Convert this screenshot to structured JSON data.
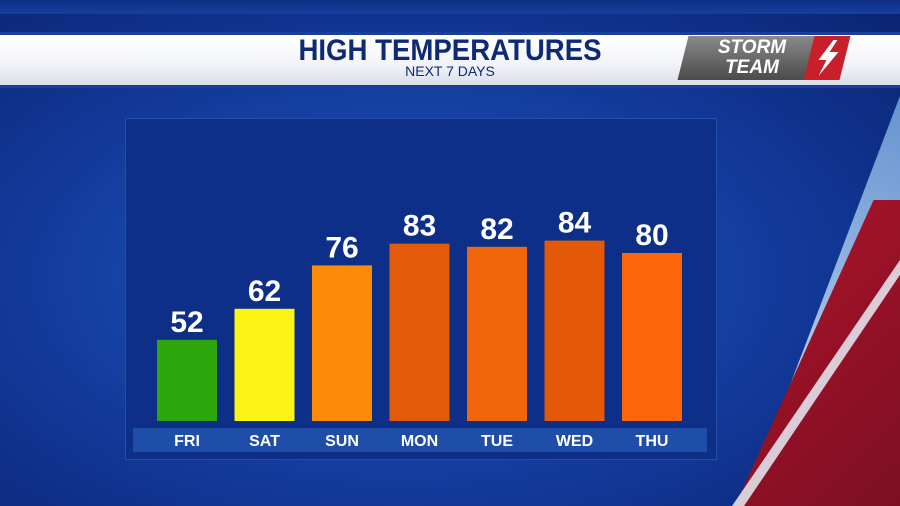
{
  "header": {
    "title": "HIGH TEMPERATURES",
    "subtitle": "NEXT 7 DAYS",
    "logo_line1": "STORM",
    "logo_line2": "TEAM"
  },
  "chart_data": {
    "type": "bar",
    "title": "HIGH TEMPERATURES",
    "subtitle": "NEXT 7 DAYS",
    "categories": [
      "FRI",
      "SAT",
      "SUN",
      "MON",
      "TUE",
      "WED",
      "THU"
    ],
    "values": [
      52,
      62,
      76,
      83,
      82,
      84,
      80
    ],
    "colors": [
      "#2ea70f",
      "#fbf414",
      "#fd8b08",
      "#e35a08",
      "#f1650b",
      "#e35907",
      "#fd6608"
    ],
    "ylim": [
      0,
      100
    ],
    "grid": false,
    "legend": "none",
    "data_labels": true
  },
  "colors": {
    "background": "#12399a",
    "panel": "#0d2f88",
    "axis_band": "#1f4ea8",
    "header_text": "#0f2a74",
    "label_text": "#ffffff",
    "logo_red": "#c8202b"
  }
}
